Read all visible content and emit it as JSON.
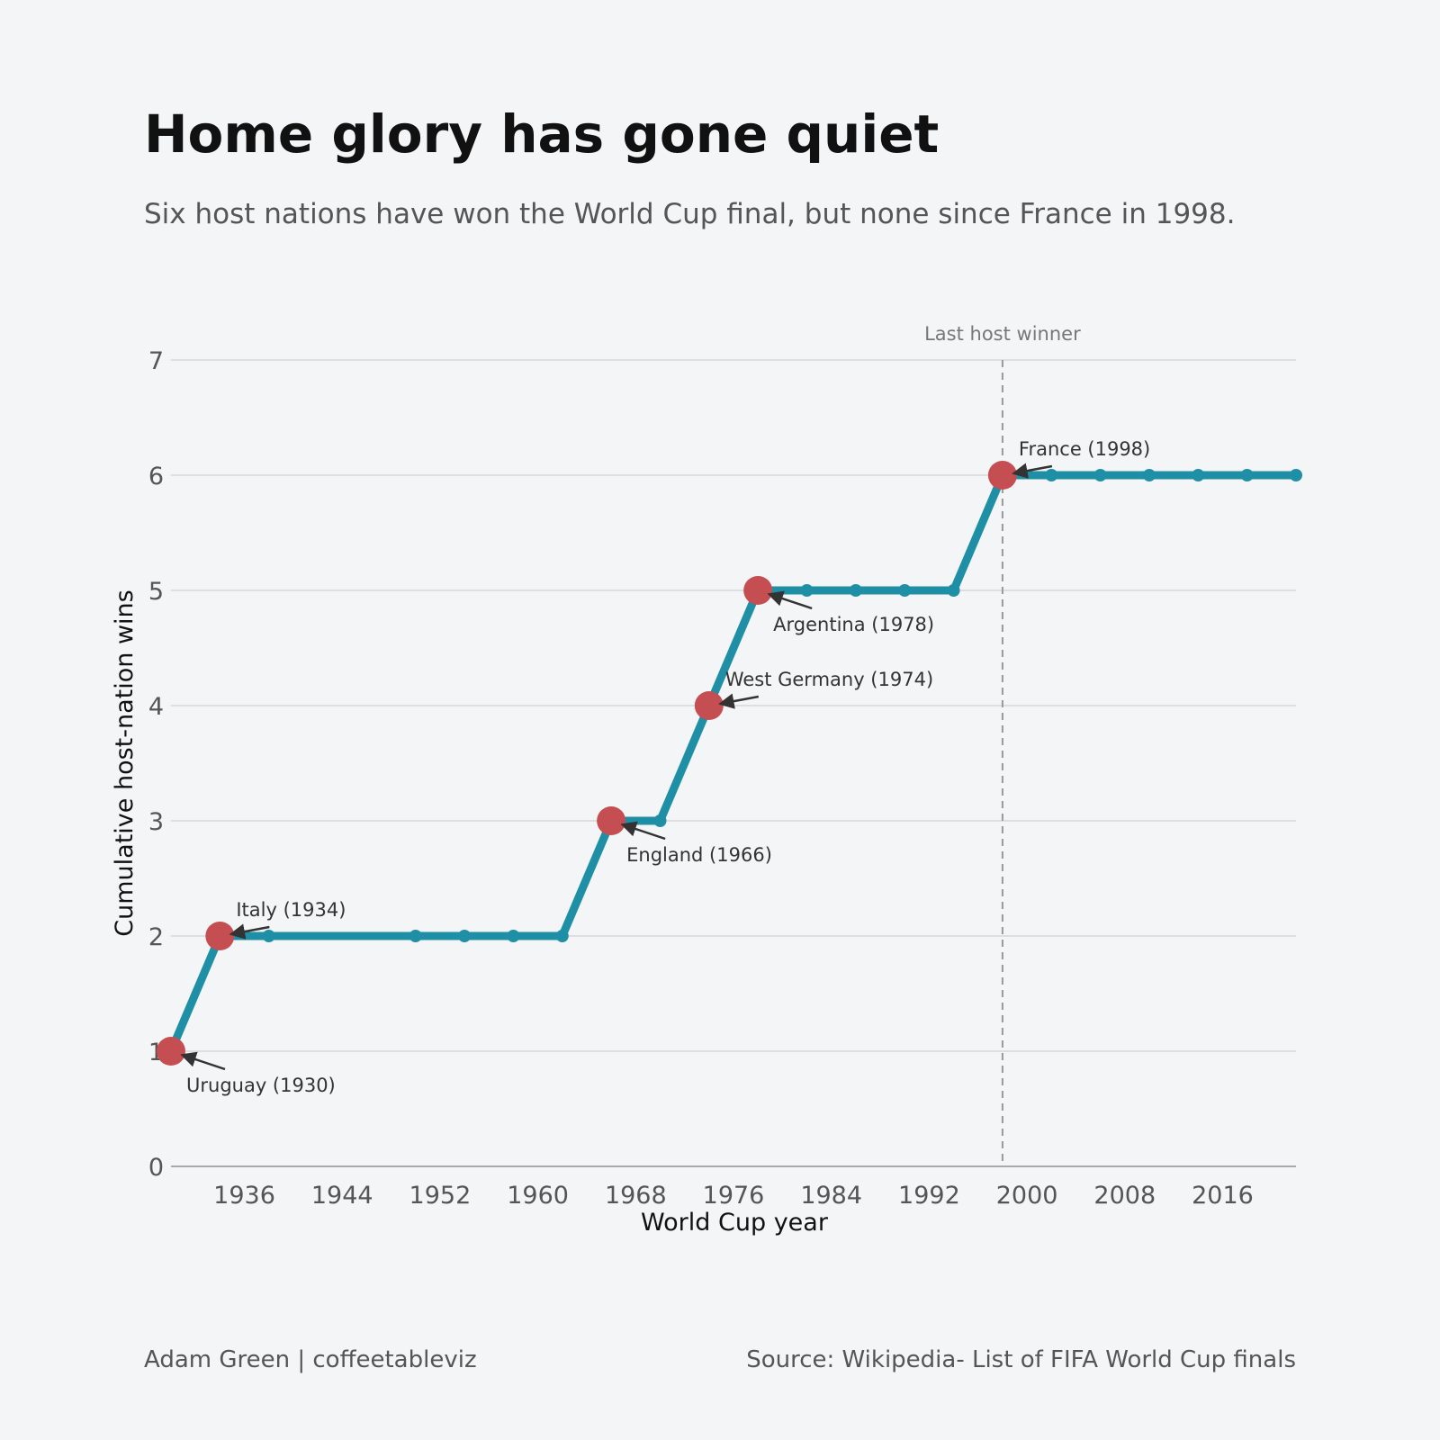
{
  "title": "Home glory has gone quiet",
  "subtitle": "Six host nations have won the World Cup final, but none since France in 1998.",
  "footer": {
    "credit": "Adam Green | coffeetableviz",
    "source": "Source: Wikipedia- List of FIFA World Cup finals"
  },
  "colors": {
    "background": "#f4f5f7",
    "line": "#1f8fa6",
    "highlight": "#c44e52",
    "grid": "#d6d7da",
    "reference_line": "#999999"
  },
  "chart_data": {
    "type": "line",
    "xlabel": "World Cup year",
    "ylabel": "Cumulative host-nation wins",
    "xlim": [
      1930,
      2022
    ],
    "ylim": [
      0,
      7
    ],
    "xticks": [
      1936,
      1944,
      1952,
      1960,
      1968,
      1976,
      1984,
      1992,
      2000,
      2008,
      2016
    ],
    "yticks": [
      0,
      1,
      2,
      3,
      4,
      5,
      6,
      7
    ],
    "grid": "horizontal",
    "series": [
      {
        "x": [
          1930,
          1934,
          1938,
          1950,
          1954,
          1958,
          1962,
          1966,
          1970,
          1974,
          1978,
          1982,
          1986,
          1990,
          1994,
          1998,
          2002,
          2006,
          2010,
          2014,
          2018,
          2022
        ],
        "y": [
          1,
          2,
          2,
          2,
          2,
          2,
          2,
          3,
          3,
          4,
          5,
          5,
          5,
          5,
          5,
          6,
          6,
          6,
          6,
          6,
          6,
          6
        ]
      }
    ],
    "highlights": [
      {
        "x": 1930,
        "y": 1,
        "label": "Uruguay (1930)",
        "placement": "below-right"
      },
      {
        "x": 1934,
        "y": 2,
        "label": "Italy (1934)",
        "placement": "above-right"
      },
      {
        "x": 1966,
        "y": 3,
        "label": "England (1966)",
        "placement": "below-right"
      },
      {
        "x": 1974,
        "y": 4,
        "label": "West Germany (1974)",
        "placement": "above-right"
      },
      {
        "x": 1978,
        "y": 5,
        "label": "Argentina (1978)",
        "placement": "below-right"
      },
      {
        "x": 1998,
        "y": 6,
        "label": "France (1998)",
        "placement": "above-right"
      }
    ],
    "reference_line": {
      "x": 1998,
      "label": "Last host winner",
      "style": "dashed"
    }
  }
}
